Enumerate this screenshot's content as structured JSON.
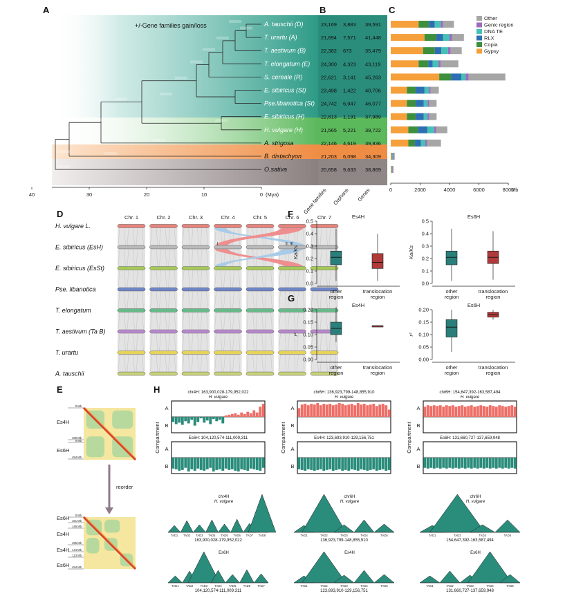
{
  "panel_labels": [
    "A",
    "B",
    "C",
    "D",
    "E",
    "F",
    "G",
    "H"
  ],
  "panel_a": {
    "legend": "+/-Gene families gain/loss",
    "axis_unit": "(Mya)",
    "ticks": [
      "40",
      "30",
      "20",
      "10",
      "0"
    ],
    "species": [
      {
        "name": "A. tauschii (D)",
        "gf": "23,169",
        "orph": "3,883",
        "genes": "39,591"
      },
      {
        "name": "T. urartu (A)",
        "gf": "21,694",
        "orph": "7,571",
        "genes": "41,448"
      },
      {
        "name": "T. aestivum (B)",
        "gf": "22,382",
        "orph": "673",
        "genes": "35,479"
      },
      {
        "name": "T. elongatum (E)",
        "gf": "24,300",
        "orph": "4,323",
        "genes": "43,119"
      },
      {
        "name": "S. cereale (R)",
        "gf": "22,621",
        "orph": "3,141",
        "genes": "45,263"
      },
      {
        "name": "E. sibiricus (St)",
        "gf": "23,498",
        "orph": "1,422",
        "genes": "40,706"
      },
      {
        "name": "Pse.libanotica (St)",
        "gf": "24,742",
        "orph": "6,947",
        "genes": "46,077"
      },
      {
        "name": "E. sibiricus (H)",
        "gf": "22,813",
        "orph": "1,191",
        "genes": "37,989"
      },
      {
        "name": "H. vulgare (H)",
        "gf": "21,565",
        "orph": "5,221",
        "genes": "39,722"
      },
      {
        "name": "A. strigosa",
        "gf": "22,146",
        "orph": "4,619",
        "genes": "39,836"
      },
      {
        "name": "B. distachyon",
        "gf": "21,203",
        "orph": "6,098",
        "genes": "34,309"
      },
      {
        "name": "O.sativa",
        "gf": "20,658",
        "orph": "9,633",
        "genes": "38,869"
      }
    ],
    "b_headers": [
      "Gene families",
      "Orphans",
      "Genes"
    ]
  },
  "chart_data": [
    {
      "type": "bar",
      "id": "panel_c",
      "orientation": "horizontal",
      "stacked": true,
      "xlabel": "Mb",
      "xlim": [
        0,
        8000
      ],
      "xticks": [
        "0",
        "2000",
        "4000",
        "6000",
        "8000"
      ],
      "legend_position": "top-right",
      "categories": [
        "A. tauschii (D)",
        "T. urartu (A)",
        "T. aestivum (B)",
        "T. elongatum (E)",
        "S. cereale (R)",
        "E. sibiricus (St)",
        "Pse.libanotica (St)",
        "E. sibiricus (H)",
        "H. vulgare (H)",
        "A. strigosa",
        "B. distachyon",
        "O.sativa"
      ],
      "series": [
        {
          "name": "Gypsy",
          "color": "#f5a03a",
          "values": [
            1900,
            2300,
            2200,
            1900,
            3300,
            1100,
            1100,
            1100,
            1200,
            1200,
            60,
            40
          ]
        },
        {
          "name": "Copia",
          "color": "#3d8f3d",
          "values": [
            700,
            800,
            800,
            650,
            800,
            600,
            600,
            600,
            650,
            450,
            30,
            20
          ]
        },
        {
          "name": "RLX",
          "color": "#2e6fb3",
          "values": [
            400,
            450,
            450,
            300,
            700,
            600,
            550,
            550,
            650,
            400,
            20,
            15
          ]
        },
        {
          "name": "DNA TE",
          "color": "#45c1b5",
          "values": [
            400,
            450,
            450,
            400,
            300,
            300,
            250,
            250,
            450,
            300,
            30,
            20
          ]
        },
        {
          "name": "Genic region",
          "color": "#9b6bbf",
          "values": [
            150,
            180,
            180,
            150,
            200,
            120,
            120,
            120,
            150,
            120,
            50,
            40
          ]
        },
        {
          "name": "Other",
          "color": "#a6a6a6",
          "values": [
            750,
            800,
            750,
            1200,
            2500,
            550,
            500,
            500,
            750,
            950,
            80,
            60
          ]
        }
      ]
    },
    {
      "type": "box",
      "id": "panel_f_left",
      "title": "Es4H",
      "ylabel": "Ka/Ks",
      "ylim": [
        0,
        0.5
      ],
      "yticks": [
        "0.0",
        "0.1",
        "0.2",
        "0.3",
        "0.4",
        "0.5"
      ],
      "categories": [
        "other region",
        "translocation region"
      ],
      "series": [
        {
          "name": "other region",
          "color": "#2a7f7a",
          "min": 0.02,
          "q1": 0.15,
          "median": 0.21,
          "q3": 0.26,
          "max": 0.44
        },
        {
          "name": "translocation region",
          "color": "#b03a3a",
          "min": 0.02,
          "q1": 0.12,
          "median": 0.17,
          "q3": 0.24,
          "max": 0.4
        }
      ]
    },
    {
      "type": "box",
      "id": "panel_f_right",
      "title": "Es6H",
      "ylabel": "Ka/Ks",
      "ylim": [
        0,
        0.5
      ],
      "yticks": [
        "0.0",
        "0.1",
        "0.2",
        "0.3",
        "0.4",
        "0.5"
      ],
      "categories": [
        "other region",
        "translocation region"
      ],
      "series": [
        {
          "name": "other region",
          "color": "#2a7f7a",
          "min": 0.02,
          "q1": 0.15,
          "median": 0.21,
          "q3": 0.26,
          "max": 0.44
        },
        {
          "name": "translocation region",
          "color": "#b03a3a",
          "min": 0.03,
          "q1": 0.16,
          "median": 0.21,
          "q3": 0.26,
          "max": 0.42
        }
      ]
    },
    {
      "type": "box",
      "id": "panel_g_left",
      "title": "Es4H",
      "ylabel": "r²",
      "ylim": [
        0,
        0.2
      ],
      "yticks": [
        "0.00",
        "0.05",
        "0.10",
        "0.15",
        "0.20"
      ],
      "categories": [
        "other region",
        "translocation region"
      ],
      "series": [
        {
          "name": "other region",
          "color": "#2a7f7a",
          "min": 0.07,
          "q1": 0.1,
          "median": 0.125,
          "q3": 0.15,
          "max": 0.21
        },
        {
          "name": "translocation region",
          "color": "#b03a3a",
          "min": 0.133,
          "q1": 0.134,
          "median": 0.135,
          "q3": 0.136,
          "max": 0.137
        }
      ]
    },
    {
      "type": "box",
      "id": "panel_g_right",
      "title": "Es6H",
      "ylabel": "r²",
      "ylim": [
        0,
        0.2
      ],
      "yticks": [
        "0.00",
        "0.05",
        "0.10",
        "0.15",
        "0.20"
      ],
      "categories": [
        "other region",
        "translocation region"
      ],
      "series": [
        {
          "name": "other region",
          "color": "#2a7f7a",
          "min": 0.03,
          "q1": 0.09,
          "median": 0.13,
          "q3": 0.16,
          "max": 0.2
        },
        {
          "name": "translocation region",
          "color": "#b03a3a",
          "min": 0.16,
          "q1": 0.17,
          "median": 0.18,
          "q3": 0.19,
          "max": 0.2
        }
      ]
    }
  ],
  "panel_d": {
    "chromosomes": [
      "Chr. 1",
      "Chr. 2",
      "Chr. 3",
      "Chr. 4",
      "Chr. 5",
      "Chr. 6",
      "Chr. 7"
    ],
    "tracks": [
      {
        "name": "H. vulgare L.",
        "color": "#e8837b"
      },
      {
        "name": "E. sibiricus (EsH)",
        "color": "#b9b9b9"
      },
      {
        "name": "E. sibiricus (EsSt)",
        "color": "#a7c957"
      },
      {
        "name": "Pse. libanotica",
        "color": "#6f86c6"
      },
      {
        "name": "T. elongatum",
        "color": "#66bb88"
      },
      {
        "name": "T. aestivum (Ta B)",
        "color": "#b98ad0"
      },
      {
        "name": "T. urartu",
        "color": "#e6d35a"
      },
      {
        "name": "A. tauschii",
        "color": "#c8d37a"
      }
    ],
    "markers": [
      "I",
      "II, III"
    ]
  },
  "panel_e": {
    "top_labels": [
      "0 Mb",
      "460 Mb",
      "0 Mb",
      "494 Mb"
    ],
    "top_groups": [
      "Es4H",
      "Es6H"
    ],
    "arrow": "reorder",
    "bottom_labels": [
      "0 Mb",
      "151 Mb",
      "145 Mb",
      "465 Mb",
      "144 Mb",
      "113 Mb",
      "494 Mb"
    ],
    "bottom_groups": [
      "Es6H",
      "Es4H",
      "Es4H",
      "Es6H"
    ]
  },
  "panel_h": {
    "ylabel": "Compartment",
    "a_label": "A",
    "b_label": "B",
    "columns": [
      {
        "top_region": "chr4H: 163,900,028-179,952,022",
        "top_species": "H. vulgare",
        "bottom_region": "Es6H: 104,120,574-111,009,311",
        "tad_top_chr": "chr4H",
        "tad_top_species": "H. vulgare",
        "tad_top_region": "163,900,028-179,952,022",
        "tad_top_labels": [
          "TAD1",
          "TAD2",
          "TAD3",
          "TAD4",
          "TAD5",
          "TAD6",
          "TAD7",
          "TAD8"
        ],
        "tad_bottom_chr": "Es6H",
        "tad_bottom_region": "104,120,574-111,009,311",
        "tad_bottom_labels": [
          "TAD1",
          "TAD2",
          "TAD3",
          "TAD4",
          "TAD5",
          "TAD6",
          "TAD7"
        ],
        "top_values": [
          -0.35,
          -0.5,
          -0.4,
          -0.55,
          -0.3,
          -0.45,
          -0.2,
          -0.6,
          -0.35,
          -0.1,
          -0.4,
          -0.25,
          -0.5,
          -0.15,
          -0.3,
          -0.2,
          -0.45,
          0.1,
          0.15,
          0.2,
          0.25,
          0.15,
          0.3,
          0.2,
          0.35,
          0.25,
          0.45,
          0.3,
          0.7,
          0.9
        ],
        "bottom_values": [
          -0.75,
          -0.8,
          -0.9,
          -0.85,
          -0.7,
          -0.95,
          -0.8,
          -0.9,
          -0.75,
          -0.85,
          -0.9,
          -0.8,
          -0.7,
          -0.95,
          -0.85,
          -0.8,
          -0.9,
          -0.75,
          -0.85,
          -0.8,
          -0.9,
          -0.95,
          -0.8,
          -0.85,
          -0.9,
          -0.75,
          -0.8,
          -0.85,
          -0.9,
          -0.7
        ]
      },
      {
        "top_region": "chr6H: 136,923,799-148,855,910",
        "top_species": "H. vulgare",
        "bottom_region": "Es4H: 123,693,910-129,156,751",
        "tad_top_chr": "chr6H",
        "tad_top_species": "H. vulgare",
        "tad_top_region": "136,923,799-148,855,910",
        "tad_top_labels": [
          "TAD1",
          "TAD2",
          "TAD3",
          "TAD4",
          "TAD5"
        ],
        "tad_bottom_chr": "Es4H",
        "tad_bottom_region": "123,693,910-129,156,751",
        "tad_bottom_labels": [
          "TAD1",
          "TAD2",
          "TAD3",
          "TAD4",
          "TAD5"
        ],
        "top_values": [
          0.6,
          0.85,
          0.9,
          0.8,
          0.9,
          0.85,
          0.95,
          0.8,
          0.9,
          0.85,
          0.9,
          0.8,
          0.85,
          0.95,
          0.9,
          0.8,
          0.85,
          0.9,
          0.8,
          0.95,
          0.85,
          0.9,
          0.8,
          0.85,
          0.9,
          0.75,
          0.85,
          0.9,
          0.8,
          0.5
        ],
        "bottom_values": [
          -0.8,
          -0.85,
          -0.9,
          -0.8,
          -0.85,
          -0.9,
          -0.85,
          -0.8,
          -0.9,
          -0.85,
          -0.8,
          -0.9,
          -0.85,
          -0.8,
          -0.9,
          -0.85,
          -0.9,
          -0.8,
          -0.85,
          -0.9,
          -0.8,
          -0.85,
          -0.9,
          -0.85,
          -0.8,
          -0.9,
          -0.85,
          -0.8,
          -0.9,
          -0.85
        ]
      },
      {
        "top_region": "chr6H: 154,647,392-163,587,494",
        "top_species": "H. vulgare",
        "bottom_region": "Es6H: 131,660,727-137,659,948",
        "tad_top_chr": "chr6H",
        "tad_top_species": "H. vulgare",
        "tad_top_region": "154,647,392-163,587,494",
        "tad_top_labels": [
          "TAD1",
          "TAD2",
          "TAD3",
          "TAD4"
        ],
        "tad_bottom_chr": "Es6H",
        "tad_bottom_region": "131,660,727-137,659,948",
        "tad_bottom_labels": [
          "TAD1",
          "TAD2",
          "TAD3",
          "TAD4",
          "TAD5"
        ],
        "top_values": [
          0.7,
          0.8,
          0.75,
          0.8,
          0.75,
          0.8,
          0.7,
          0.8,
          0.75,
          0.8,
          0.7,
          0.75,
          0.8,
          0.7,
          0.75,
          0.8,
          0.7,
          0.75,
          0.8,
          0.75,
          0.7,
          0.8,
          0.75,
          0.7,
          0.8,
          0.75,
          0.7,
          0.75,
          0.8,
          0.7
        ],
        "bottom_values": [
          -0.7,
          -0.75,
          -0.7,
          -0.75,
          -0.7,
          -0.75,
          -0.7,
          -0.75,
          -0.7,
          -0.75,
          -0.7,
          -0.75,
          -0.7,
          -0.75,
          -0.7,
          -0.75,
          -0.7,
          -0.75,
          -0.7,
          -0.75,
          -0.7,
          -0.75,
          -0.7,
          -0.75,
          -0.7,
          -0.75,
          -0.7,
          -0.75,
          -0.7,
          -0.75
        ]
      }
    ]
  }
}
